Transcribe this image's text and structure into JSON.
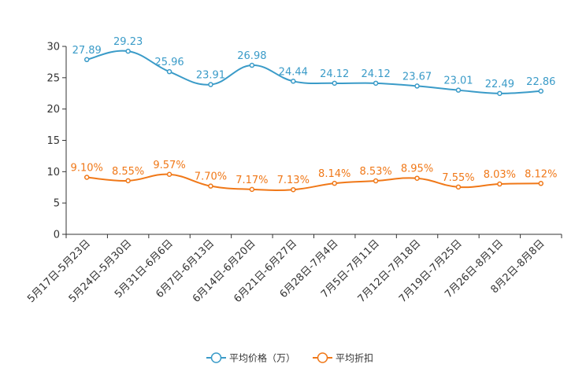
{
  "chart_data": {
    "type": "line",
    "categories": [
      "5月17日-5月23日",
      "5月24日-5月30日",
      "5月31日-6月6日",
      "6月7日-6月13日",
      "6月14日-6月20日",
      "6月21日-6月27日",
      "6月28日-7月4日",
      "7月5日-7月11日",
      "7月12日-7月18日",
      "7月19日-7月25日",
      "7月26日-8月1日",
      "8月2日-8月8日"
    ],
    "ylim": [
      0,
      30
    ],
    "yticks": [
      0,
      5,
      10,
      15,
      20,
      25,
      30
    ],
    "series": [
      {
        "name": "平均价格（万）",
        "color": "#3a9bc8",
        "values": [
          27.89,
          29.23,
          25.96,
          23.91,
          26.98,
          24.44,
          24.12,
          24.12,
          23.67,
          23.01,
          22.49,
          22.86
        ],
        "labels": [
          "27.89",
          "29.23",
          "25.96",
          "23.91",
          "26.98",
          "24.44",
          "24.12",
          "24.12",
          "23.67",
          "23.01",
          "22.49",
          "22.86"
        ]
      },
      {
        "name": "平均折扣",
        "color": "#f07818",
        "values": [
          9.1,
          8.55,
          9.57,
          7.7,
          7.17,
          7.13,
          8.14,
          8.53,
          8.95,
          7.55,
          8.03,
          8.12
        ],
        "labels": [
          "9.10%",
          "8.55%",
          "9.57%",
          "7.70%",
          "7.17%",
          "7.13%",
          "8.14%",
          "8.53%",
          "8.95%",
          "7.55%",
          "8.03%",
          "8.12%"
        ]
      }
    ],
    "legend_position": "bottom-center"
  }
}
